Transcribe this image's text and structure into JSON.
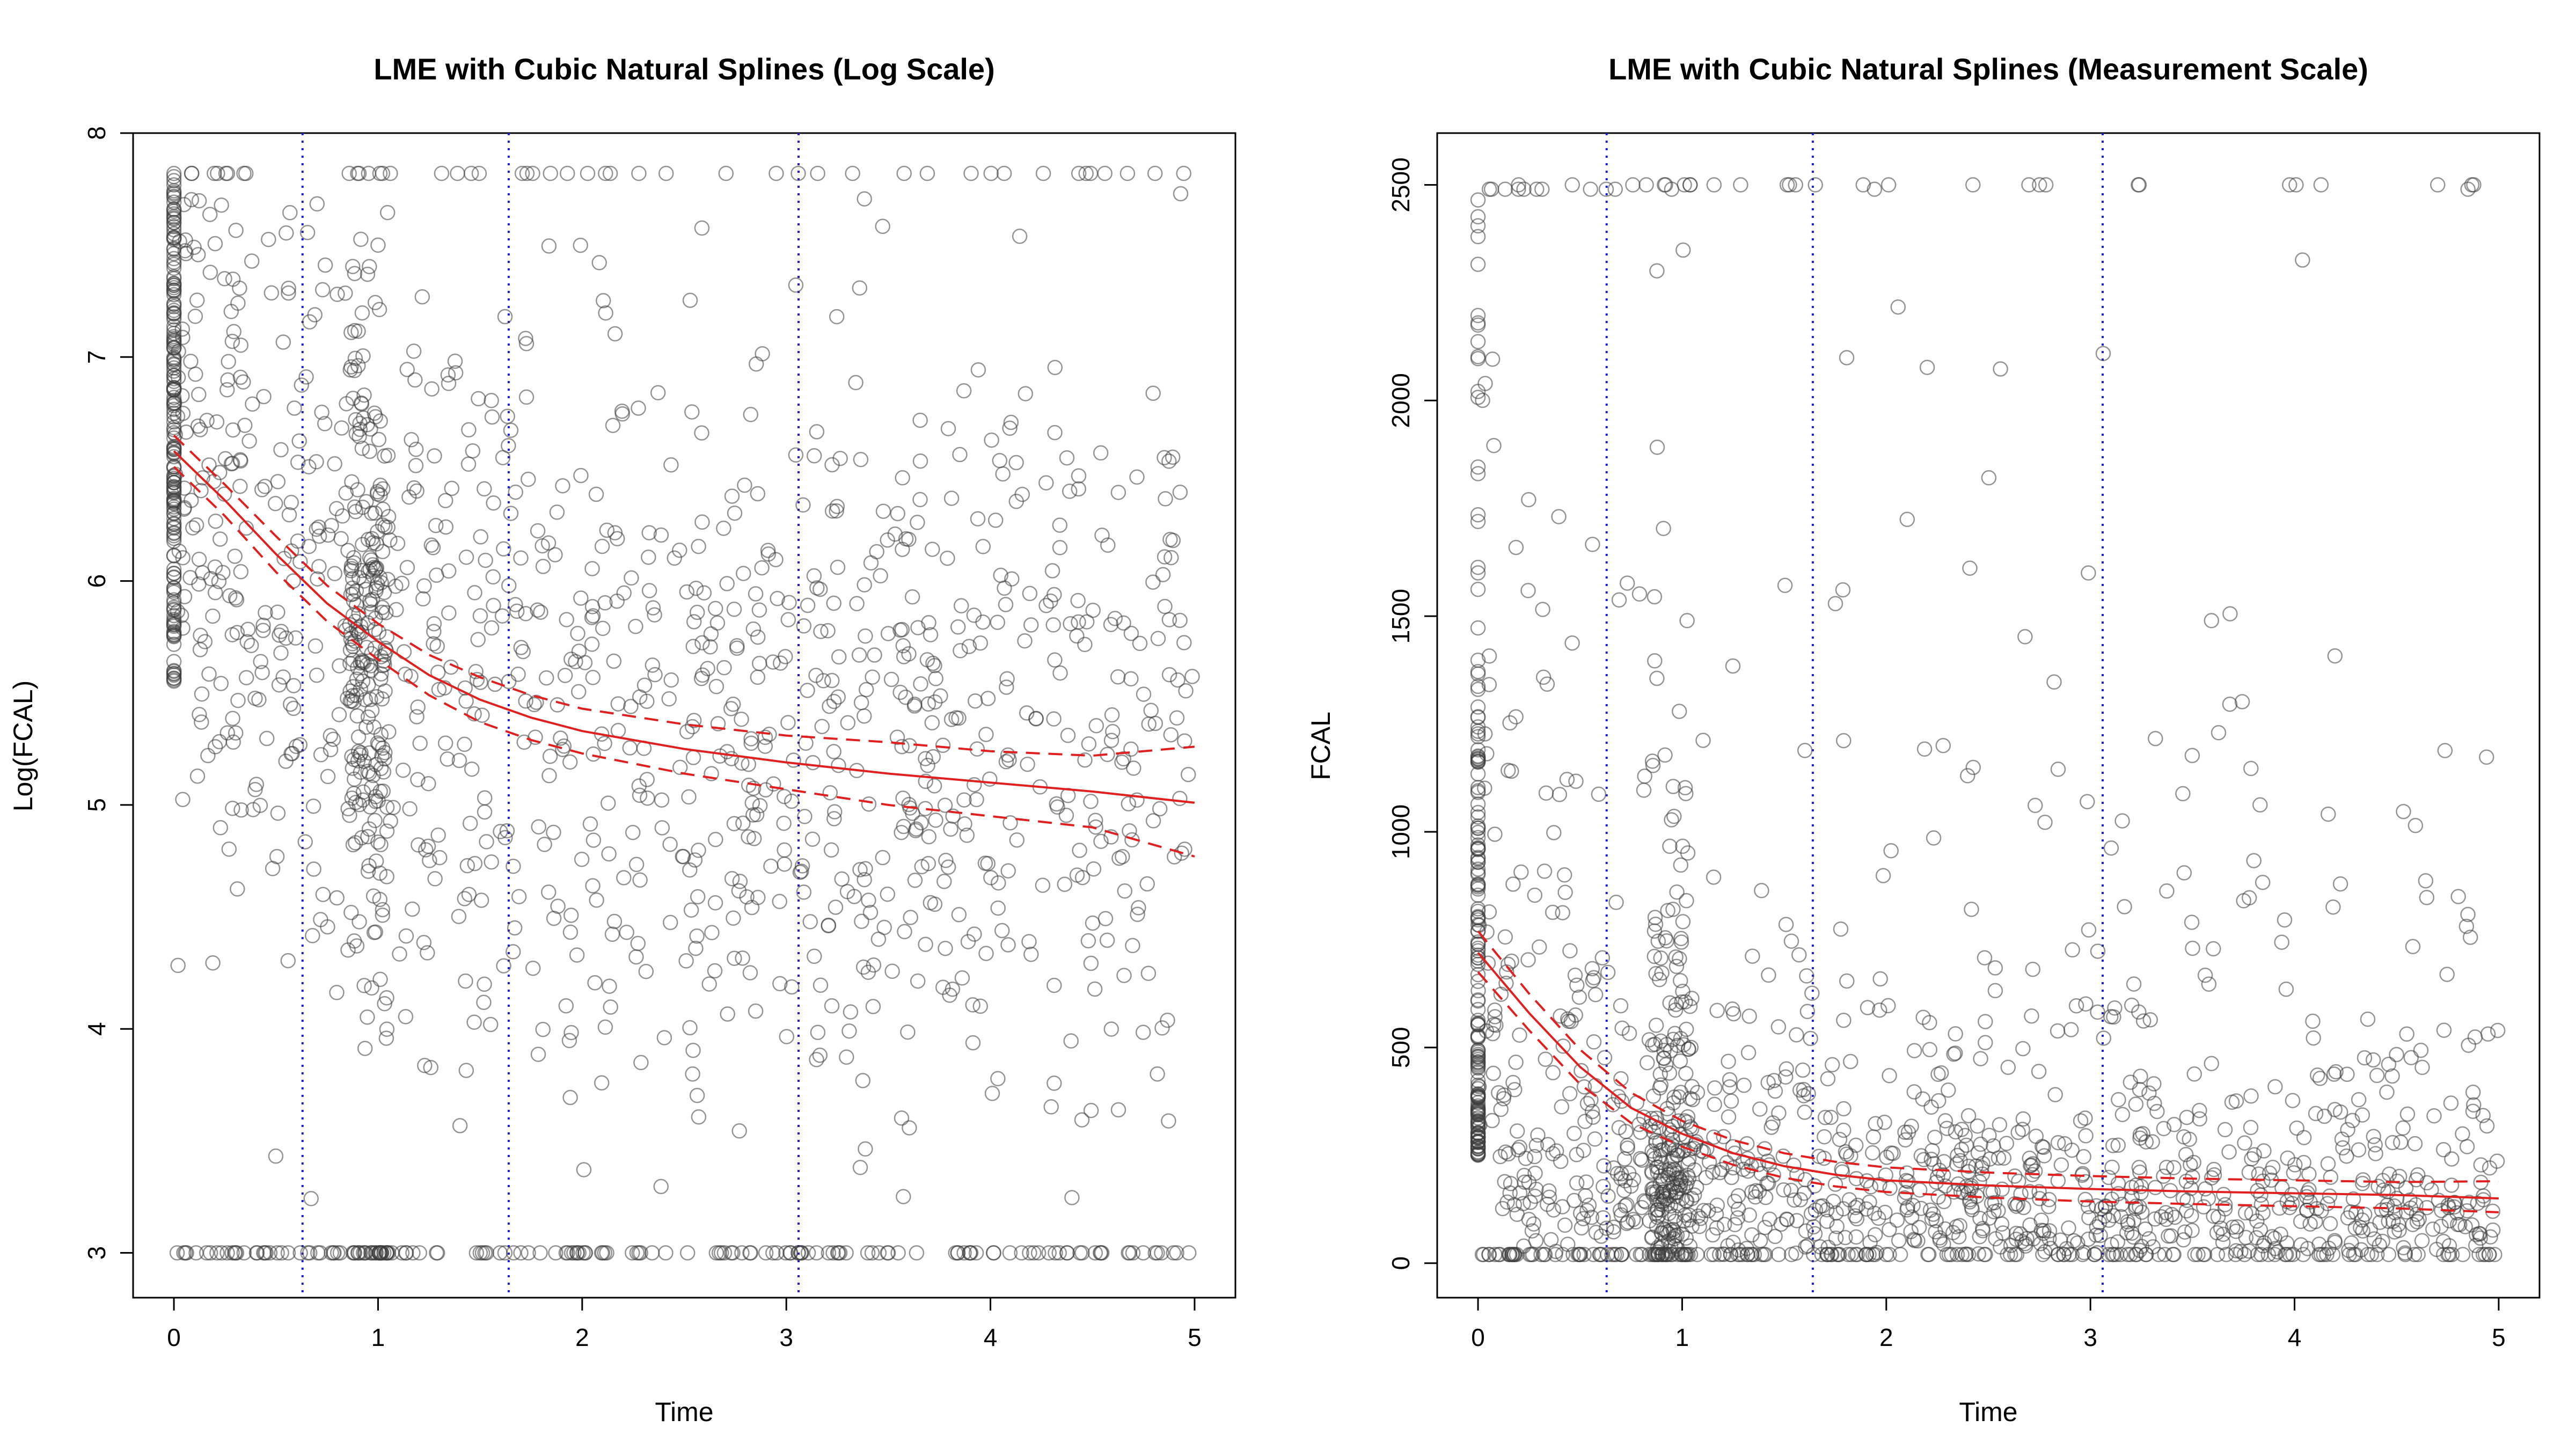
{
  "chart_data": [
    {
      "type": "scatter",
      "title": "LME with Cubic Natural Splines (Log Scale)",
      "xlabel": "Time",
      "ylabel": "Log(FCAL)",
      "xlim": [
        -0.2,
        5.2
      ],
      "ylim": [
        2.8,
        8.0
      ],
      "xticks": [
        "0",
        "1",
        "2",
        "3",
        "4",
        "5"
      ],
      "yticks": [
        "3",
        "4",
        "5",
        "6",
        "7",
        "8"
      ],
      "grid": false,
      "knots": [
        0.63,
        1.64,
        3.06
      ],
      "point_color": "#555555",
      "fit_color": "#e0201f",
      "knot_color": "#1f1fd0",
      "series": [
        {
          "kind": "fit",
          "x": [
            0,
            0.25,
            0.5,
            0.75,
            1.0,
            1.25,
            1.5,
            1.75,
            2.0,
            2.5,
            3.0,
            3.5,
            4.0,
            4.5,
            5.0
          ],
          "y": [
            6.58,
            6.36,
            6.12,
            5.9,
            5.73,
            5.58,
            5.47,
            5.39,
            5.33,
            5.25,
            5.19,
            5.14,
            5.1,
            5.06,
            5.01
          ]
        },
        {
          "kind": "ci-upper",
          "x": [
            0,
            0.25,
            0.5,
            0.75,
            1.0,
            1.25,
            1.5,
            1.75,
            2.0,
            2.5,
            3.0,
            3.5,
            4.0,
            4.5,
            5.0
          ],
          "y": [
            6.65,
            6.43,
            6.2,
            5.98,
            5.81,
            5.67,
            5.57,
            5.49,
            5.43,
            5.36,
            5.31,
            5.28,
            5.24,
            5.22,
            5.26
          ]
        },
        {
          "kind": "ci-lower",
          "x": [
            0,
            0.25,
            0.5,
            0.75,
            1.0,
            1.25,
            1.5,
            1.75,
            2.0,
            2.5,
            3.0,
            3.5,
            4.0,
            4.5,
            5.0
          ],
          "y": [
            6.51,
            6.29,
            6.04,
            5.82,
            5.65,
            5.49,
            5.37,
            5.29,
            5.23,
            5.14,
            5.07,
            5.0,
            4.95,
            4.9,
            4.77
          ]
        }
      ],
      "observations": {
        "x_range": [
          0,
          5
        ],
        "baseline_column_x": 0,
        "floor_y": 3.0,
        "ceiling_y": 7.82,
        "y_range": [
          3.0,
          7.82
        ]
      }
    },
    {
      "type": "scatter",
      "title": "LME with Cubic Natural Splines (Measurement Scale)",
      "xlabel": "Time",
      "ylabel": "FCAL",
      "xlim": [
        -0.2,
        5.2
      ],
      "ylim": [
        -80,
        2620
      ],
      "xticks": [
        "0",
        "1",
        "2",
        "3",
        "4",
        "5"
      ],
      "yticks": [
        "0",
        "500",
        "1000",
        "1500",
        "2000",
        "2500"
      ],
      "grid": false,
      "knots": [
        0.63,
        1.64,
        3.06
      ],
      "point_color": "#555555",
      "fit_color": "#e0201f",
      "knot_color": "#1f1fd0",
      "series": [
        {
          "kind": "fit",
          "x": [
            0,
            0.25,
            0.5,
            0.75,
            1.0,
            1.25,
            1.5,
            1.75,
            2.0,
            2.5,
            3.0,
            3.5,
            4.0,
            4.5,
            5.0
          ],
          "y": [
            720,
            580,
            455,
            360,
            300,
            255,
            225,
            205,
            192,
            180,
            172,
            166,
            162,
            158,
            150
          ]
        },
        {
          "kind": "ci-upper",
          "x": [
            0,
            0.25,
            0.5,
            0.75,
            1.0,
            1.25,
            1.5,
            1.75,
            2.0,
            2.5,
            3.0,
            3.5,
            4.0,
            4.5,
            5.0
          ],
          "y": [
            770,
            625,
            495,
            395,
            330,
            285,
            255,
            235,
            222,
            210,
            202,
            196,
            192,
            188,
            190
          ]
        },
        {
          "kind": "ci-lower",
          "x": [
            0,
            0.25,
            0.5,
            0.75,
            1.0,
            1.25,
            1.5,
            1.75,
            2.0,
            2.5,
            3.0,
            3.5,
            4.0,
            4.5,
            5.0
          ],
          "y": [
            675,
            540,
            415,
            325,
            270,
            228,
            198,
            178,
            165,
            152,
            143,
            137,
            132,
            127,
            118
          ]
        }
      ],
      "observations": {
        "x_range": [
          0,
          5
        ],
        "baseline_column_x": 0,
        "floor_y": 20,
        "ceiling_y": 2500,
        "y_range": [
          20,
          2500
        ]
      }
    }
  ]
}
